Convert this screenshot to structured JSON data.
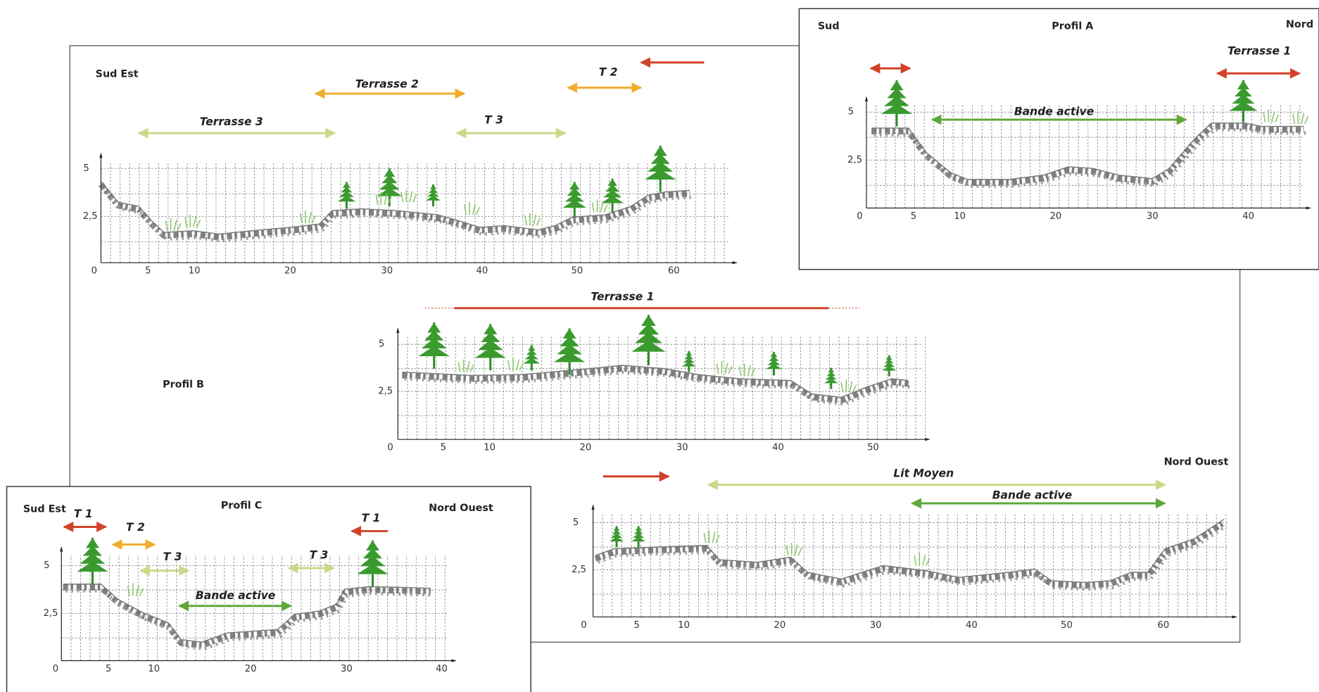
{
  "profile_a": {
    "left": "Sud",
    "title": "Profil A",
    "right": "Nord",
    "terrace": "Terrasse 1",
    "active": "Bande active",
    "x_ticks": [
      "0",
      "5",
      "10",
      "20",
      "30",
      "40"
    ],
    "y_ticks": [
      "5",
      "2,5"
    ]
  },
  "profile_b": {
    "left": "Sud Est",
    "title": "Profil B",
    "right": "Nord Ouest",
    "upper": {
      "terrasse_3": "Terrasse 3",
      "terrasse_2": "Terrasse 2",
      "t3": "T 3",
      "t2": "T 2",
      "x_ticks": [
        "0",
        "5",
        "10",
        "20",
        "30",
        "40",
        "50",
        "60"
      ],
      "y_ticks": [
        "5",
        "2,5"
      ]
    },
    "middle": {
      "terrasse_1": "Terrasse 1",
      "x_ticks": [
        "0",
        "5",
        "10",
        "20",
        "30",
        "40",
        "50"
      ],
      "y_ticks": [
        "5",
        "2,5"
      ]
    },
    "lower": {
      "lit_moyen": "Lit Moyen",
      "active": "Bande active",
      "x_ticks": [
        "0",
        "5",
        "10",
        "20",
        "30",
        "40",
        "50",
        "60"
      ],
      "y_ticks": [
        "5",
        "2,5"
      ]
    }
  },
  "profile_c": {
    "left": "Sud Est",
    "title": "Profil C",
    "right": "Nord Ouest",
    "t1_left": "T 1",
    "t2": "T 2",
    "t3_left": "T 3",
    "t3_right": "T 3",
    "t1_right": "T 1",
    "active": "Bande active",
    "x_ticks": [
      "0",
      "5",
      "10",
      "20",
      "30",
      "40"
    ],
    "y_ticks": [
      "5",
      "2,5"
    ]
  }
}
